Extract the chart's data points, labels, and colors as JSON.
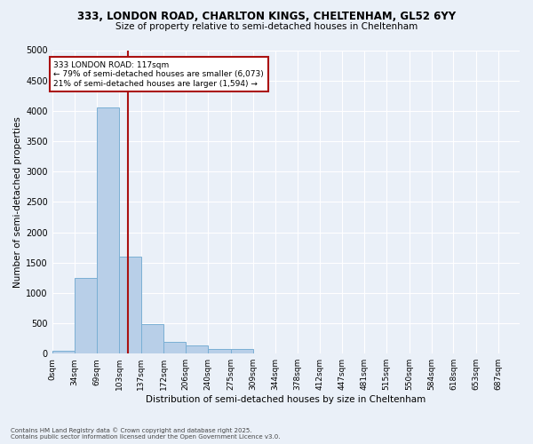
{
  "title_line1": "333, LONDON ROAD, CHARLTON KINGS, CHELTENHAM, GL52 6YY",
  "title_line2": "Size of property relative to semi-detached houses in Cheltenham",
  "xlabel": "Distribution of semi-detached houses by size in Cheltenham",
  "ylabel": "Number of semi-detached properties",
  "annotation_line1": "333 LONDON ROAD: 117sqm",
  "annotation_line2": "← 79% of semi-detached houses are smaller (6,073)",
  "annotation_line3": "21% of semi-detached houses are larger (1,594) →",
  "property_size": 117,
  "bin_labels": [
    "0sqm",
    "34sqm",
    "69sqm",
    "103sqm",
    "137sqm",
    "172sqm",
    "206sqm",
    "240sqm",
    "275sqm",
    "309sqm",
    "344sqm",
    "378sqm",
    "412sqm",
    "447sqm",
    "481sqm",
    "515sqm",
    "550sqm",
    "584sqm",
    "618sqm",
    "653sqm",
    "687sqm"
  ],
  "bin_edges": [
    0,
    34,
    69,
    103,
    137,
    172,
    206,
    240,
    275,
    309,
    344,
    378,
    412,
    447,
    481,
    515,
    550,
    584,
    618,
    653,
    687,
    720
  ],
  "counts": [
    50,
    1250,
    4050,
    1600,
    480,
    200,
    130,
    80,
    70,
    0,
    0,
    0,
    0,
    0,
    0,
    0,
    0,
    0,
    0,
    0,
    0
  ],
  "bar_color": "#b8cfe8",
  "bar_edge_color": "#7aafd4",
  "red_line_color": "#aa1111",
  "annotation_box_color": "#aa1111",
  "background_color": "#eaf0f8",
  "grid_color": "#ffffff",
  "ylim": [
    0,
    5000
  ],
  "yticks": [
    0,
    500,
    1000,
    1500,
    2000,
    2500,
    3000,
    3500,
    4000,
    4500,
    5000
  ],
  "footer_line1": "Contains HM Land Registry data © Crown copyright and database right 2025.",
  "footer_line2": "Contains public sector information licensed under the Open Government Licence v3.0."
}
